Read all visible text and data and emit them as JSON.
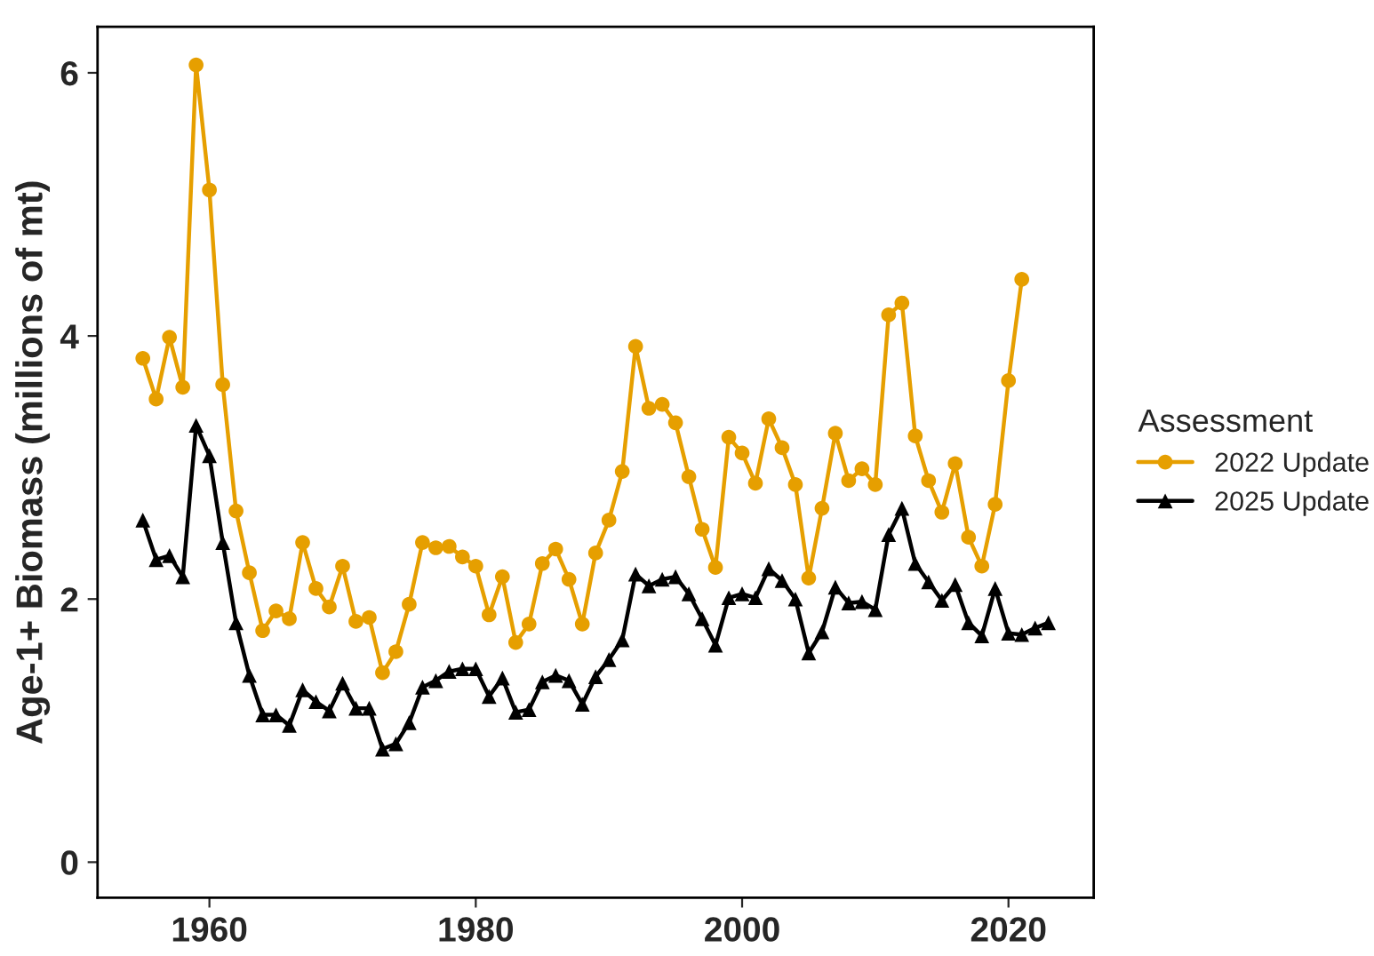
{
  "chart_data": {
    "type": "line",
    "ylabel": "Age-1+ Biomass (millions of mt)",
    "legend_title": "Assessment",
    "legend": "right",
    "grid": false,
    "xlim": [
      1951.6,
      2026.4
    ],
    "ylim": [
      -0.27,
      6.35
    ],
    "xticks": [
      1960,
      1980,
      2000,
      2020
    ],
    "yticks": [
      0,
      2,
      4,
      6
    ],
    "series": [
      {
        "name": "2022 Update",
        "color": "#e69f00",
        "marker": "circle",
        "x": [
          1955,
          1956,
          1957,
          1958,
          1959,
          1960,
          1961,
          1962,
          1963,
          1964,
          1965,
          1966,
          1967,
          1968,
          1969,
          1970,
          1971,
          1972,
          1973,
          1974,
          1975,
          1976,
          1977,
          1978,
          1979,
          1980,
          1981,
          1982,
          1983,
          1984,
          1985,
          1986,
          1987,
          1988,
          1989,
          1990,
          1991,
          1992,
          1993,
          1994,
          1995,
          1996,
          1997,
          1998,
          1999,
          2000,
          2001,
          2002,
          2003,
          2004,
          2005,
          2006,
          2007,
          2008,
          2009,
          2010,
          2011,
          2012,
          2013,
          2014,
          2015,
          2016,
          2017,
          2018,
          2019,
          2020,
          2021
        ],
        "values": [
          3.83,
          3.52,
          3.99,
          3.61,
          6.06,
          5.11,
          3.63,
          2.67,
          2.2,
          1.76,
          1.91,
          1.85,
          2.43,
          2.08,
          1.94,
          2.25,
          1.83,
          1.86,
          1.44,
          1.6,
          1.96,
          2.43,
          2.39,
          2.4,
          2.32,
          2.25,
          1.88,
          2.17,
          1.67,
          1.81,
          2.27,
          2.38,
          2.15,
          1.81,
          2.35,
          2.6,
          2.97,
          3.92,
          3.45,
          3.48,
          3.34,
          2.93,
          2.53,
          2.24,
          3.23,
          3.11,
          2.88,
          3.37,
          3.15,
          2.87,
          2.16,
          2.69,
          3.26,
          2.9,
          2.99,
          2.87,
          4.16,
          4.25,
          3.24,
          2.9,
          2.66,
          3.03,
          2.47,
          2.25,
          2.72,
          3.66,
          4.43
        ]
      },
      {
        "name": "2025 Update",
        "color": "#000000",
        "marker": "triangle",
        "x": [
          1955,
          1956,
          1957,
          1958,
          1959,
          1960,
          1961,
          1962,
          1963,
          1964,
          1965,
          1966,
          1967,
          1968,
          1969,
          1970,
          1971,
          1972,
          1973,
          1974,
          1975,
          1976,
          1977,
          1978,
          1979,
          1980,
          1981,
          1982,
          1983,
          1984,
          1985,
          1986,
          1987,
          1988,
          1989,
          1990,
          1991,
          1992,
          1993,
          1994,
          1995,
          1996,
          1997,
          1998,
          1999,
          2000,
          2001,
          2002,
          2003,
          2004,
          2005,
          2006,
          2007,
          2008,
          2009,
          2010,
          2011,
          2012,
          2013,
          2014,
          2015,
          2016,
          2017,
          2018,
          2019,
          2020,
          2021,
          2022,
          2023
        ],
        "values": [
          2.6,
          2.3,
          2.33,
          2.17,
          3.32,
          3.09,
          2.43,
          1.82,
          1.42,
          1.12,
          1.12,
          1.04,
          1.31,
          1.22,
          1.15,
          1.36,
          1.17,
          1.17,
          0.86,
          0.9,
          1.06,
          1.33,
          1.38,
          1.45,
          1.47,
          1.47,
          1.26,
          1.4,
          1.14,
          1.16,
          1.37,
          1.42,
          1.38,
          1.2,
          1.41,
          1.54,
          1.69,
          2.19,
          2.1,
          2.15,
          2.17,
          2.04,
          1.85,
          1.65,
          2.01,
          2.04,
          2.01,
          2.23,
          2.14,
          2.0,
          1.59,
          1.75,
          2.09,
          1.97,
          1.98,
          1.92,
          2.49,
          2.69,
          2.27,
          2.13,
          1.99,
          2.11,
          1.82,
          1.72,
          2.08,
          1.74,
          1.73,
          1.78,
          1.82
        ]
      }
    ]
  }
}
